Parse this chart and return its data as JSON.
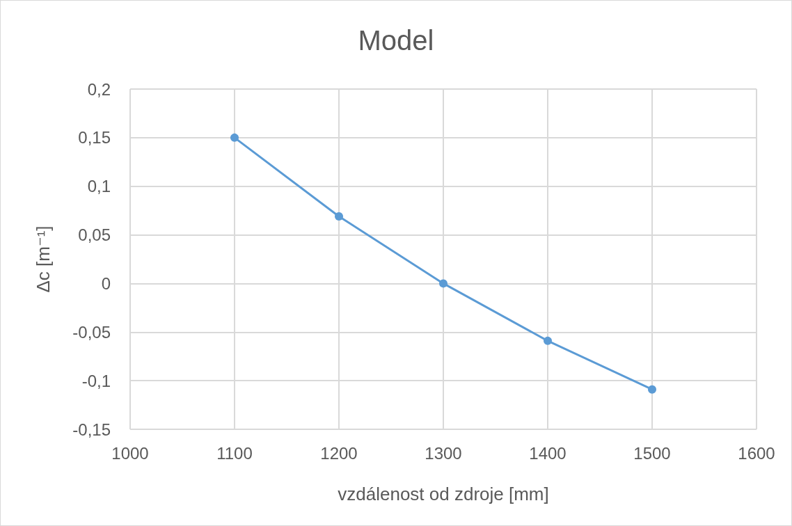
{
  "chart_data": {
    "type": "line",
    "title": "Model",
    "xlabel": "vzdálenost od zdroje [mm]",
    "ylabel": "Δc [m⁻¹]",
    "x": [
      1100,
      1200,
      1300,
      1400,
      1500
    ],
    "series": [
      {
        "color": "#5b9bd5",
        "values": [
          0.15,
          0.069,
          0,
          -0.059,
          -0.109
        ]
      }
    ],
    "xlim": [
      1000,
      1600
    ],
    "xticks": [
      1000,
      1100,
      1200,
      1300,
      1400,
      1500,
      1600
    ],
    "ylim": [
      -0.15,
      0.2
    ],
    "yticks": [
      {
        "value": -0.15,
        "label": "-0,15"
      },
      {
        "value": -0.1,
        "label": "-0,1"
      },
      {
        "value": -0.05,
        "label": "-0,05"
      },
      0,
      {
        "value": 0.05,
        "label": "0,05"
      },
      {
        "value": 0.1,
        "label": "0,1"
      },
      {
        "value": 0.15,
        "label": "0,15"
      },
      {
        "value": 0.2,
        "label": "0,2"
      }
    ],
    "grid": true,
    "marker": "circle",
    "line_style": "solid"
  }
}
